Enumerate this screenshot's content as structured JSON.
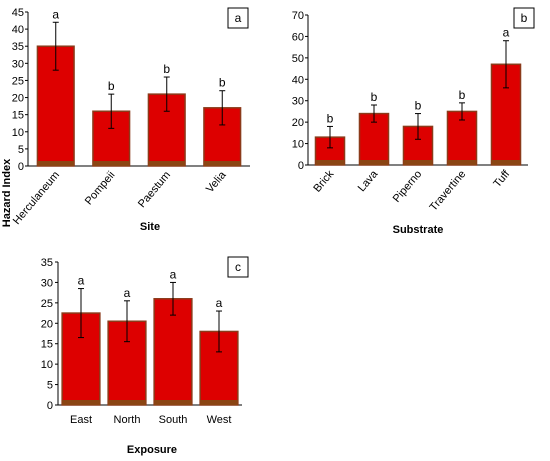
{
  "y_axis_label": "Hazard Index",
  "chart_data": [
    {
      "type": "bar",
      "panel": "a",
      "xlabel": "Site",
      "ylabel": "Hazard Index",
      "ylim": [
        0,
        45
      ],
      "yticks": [
        0,
        5,
        10,
        15,
        20,
        25,
        30,
        35,
        40,
        45
      ],
      "tick_labels": [
        "0",
        "5",
        "10",
        "15",
        "20",
        "25",
        "30",
        "35",
        "40",
        "45"
      ],
      "categories": [
        "Herculaneum",
        "Pompeii",
        "Paestum",
        "Velia"
      ],
      "values": [
        35,
        16,
        21,
        17
      ],
      "errors": [
        7,
        5,
        5,
        5
      ],
      "letters": [
        "a",
        "b",
        "b",
        "b"
      ],
      "x_tick_rotation": -50,
      "grid": false
    },
    {
      "type": "bar",
      "panel": "b",
      "xlabel": "Substrate",
      "ylim": [
        0,
        70
      ],
      "yticks": [
        0,
        10,
        20,
        30,
        40,
        50,
        60,
        70
      ],
      "tick_labels": [
        "0",
        "10",
        "20",
        "30",
        "40",
        "50",
        "60",
        "70"
      ],
      "categories": [
        "Brick",
        "Lava",
        "Piperno",
        "Travertine",
        "Tuff"
      ],
      "values": [
        13,
        24,
        18,
        25,
        47
      ],
      "errors": [
        5,
        4,
        6,
        4,
        11
      ],
      "letters": [
        "b",
        "b",
        "b",
        "b",
        "a"
      ],
      "x_tick_rotation": -50,
      "grid": false
    },
    {
      "type": "bar",
      "panel": "c",
      "xlabel": "Exposure",
      "ylim": [
        0,
        35
      ],
      "yticks": [
        0,
        5,
        10,
        15,
        20,
        25,
        30,
        35
      ],
      "tick_labels": [
        "0",
        "5",
        "10",
        "15",
        "20",
        "25",
        "30",
        "35"
      ],
      "categories": [
        "East",
        "North",
        "South",
        "West"
      ],
      "values": [
        22.5,
        20.5,
        26,
        18
      ],
      "errors": [
        6,
        5,
        4,
        5
      ],
      "letters": [
        "a",
        "a",
        "a",
        "a"
      ],
      "x_tick_rotation": 0,
      "grid": false
    }
  ],
  "colors": {
    "bar_fill": "#dd0000",
    "bar_border": "#8b3a1a",
    "bar_base": "#8b4513",
    "axis": "#000000"
  }
}
